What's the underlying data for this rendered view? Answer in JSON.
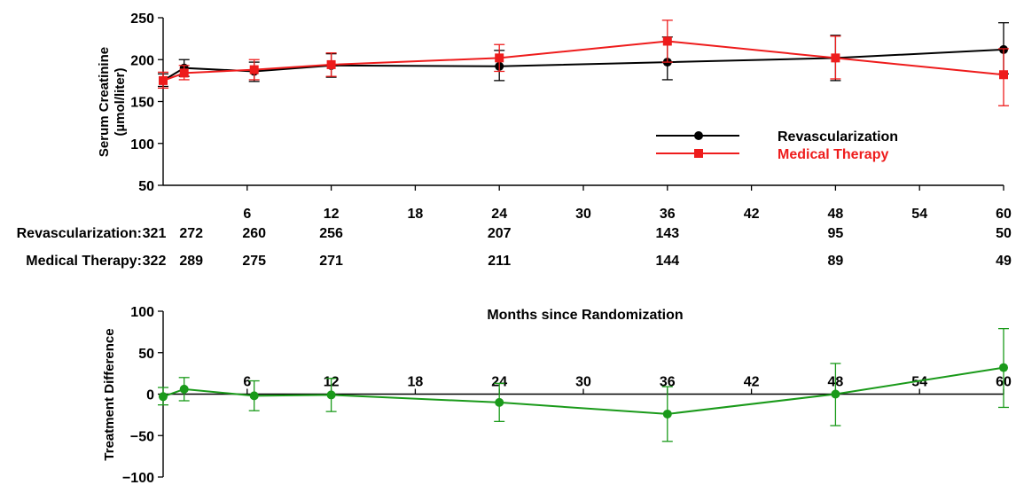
{
  "chart_data": [
    {
      "type": "line",
      "ylabel_lines": [
        "Serum Creatinine",
        "(µmol/liter)"
      ],
      "ylim": [
        50,
        250
      ],
      "yticks": [
        50,
        100,
        150,
        200,
        250
      ],
      "xlim": [
        0,
        60
      ],
      "xticks": [
        6,
        12,
        18,
        24,
        30,
        36,
        42,
        48,
        54,
        60
      ],
      "legend_position": "center-right",
      "series": [
        {
          "name": "Revascularization",
          "color": "#000000",
          "marker": "circle",
          "points": [
            {
              "x": 0,
              "y": 175,
              "lo": 168,
              "hi": 183
            },
            {
              "x": 1.5,
              "y": 190,
              "lo": 180,
              "hi": 200
            },
            {
              "x": 6.5,
              "y": 186,
              "lo": 174,
              "hi": 197
            },
            {
              "x": 12,
              "y": 193,
              "lo": 179,
              "hi": 207
            },
            {
              "x": 24,
              "y": 192,
              "lo": 175,
              "hi": 211
            },
            {
              "x": 36,
              "y": 197,
              "lo": 176,
              "hi": 227
            },
            {
              "x": 48,
              "y": 202,
              "lo": 175,
              "hi": 229
            },
            {
              "x": 60,
              "y": 212,
              "lo": 183,
              "hi": 244
            }
          ]
        },
        {
          "name": "Medical Therapy",
          "color": "#ee1c1c",
          "marker": "square",
          "points": [
            {
              "x": 0,
              "y": 175,
              "lo": 166,
              "hi": 185
            },
            {
              "x": 1.5,
              "y": 184,
              "lo": 176,
              "hi": 193
            },
            {
              "x": 6.5,
              "y": 188,
              "lo": 176,
              "hi": 200
            },
            {
              "x": 12,
              "y": 194,
              "lo": 180,
              "hi": 208
            },
            {
              "x": 24,
              "y": 202,
              "lo": 186,
              "hi": 218
            },
            {
              "x": 36,
              "y": 222,
              "lo": 197,
              "hi": 247
            },
            {
              "x": 48,
              "y": 202,
              "lo": 177,
              "hi": 228
            },
            {
              "x": 60,
              "y": 182,
              "lo": 145,
              "hi": 213
            }
          ]
        }
      ]
    },
    {
      "type": "line",
      "xlabel": "Months since Randomization",
      "ylabel": "Treatment Difference",
      "ylim": [
        -100,
        100
      ],
      "yticks": [
        -100,
        -50,
        0,
        50,
        100
      ],
      "xlim": [
        0,
        60
      ],
      "xticks": [
        6,
        12,
        18,
        24,
        30,
        36,
        42,
        48,
        54,
        60
      ],
      "series": [
        {
          "color": "#1a9a1a",
          "marker": "circle",
          "points": [
            {
              "x": 0,
              "y": -3,
              "lo": -13,
              "hi": 8
            },
            {
              "x": 1.5,
              "y": 6,
              "lo": -8,
              "hi": 20
            },
            {
              "x": 6.5,
              "y": -2,
              "lo": -20,
              "hi": 16
            },
            {
              "x": 12,
              "y": -1,
              "lo": -21,
              "hi": 19
            },
            {
              "x": 24,
              "y": -10,
              "lo": -33,
              "hi": 13
            },
            {
              "x": 36,
              "y": -24,
              "lo": -57,
              "hi": 9
            },
            {
              "x": 48,
              "y": 0,
              "lo": -38,
              "hi": 37
            },
            {
              "x": 60,
              "y": 32,
              "lo": -16,
              "hi": 79
            }
          ]
        }
      ]
    }
  ],
  "at_risk": {
    "rows": [
      {
        "label": "Revascularization:",
        "values": [
          "321",
          "272",
          "260",
          "256",
          "207",
          "143",
          "95",
          "50"
        ]
      },
      {
        "label": "Medical Therapy:",
        "values": [
          "322",
          "289",
          "275",
          "271",
          "211",
          "144",
          "89",
          "49"
        ]
      }
    ]
  }
}
